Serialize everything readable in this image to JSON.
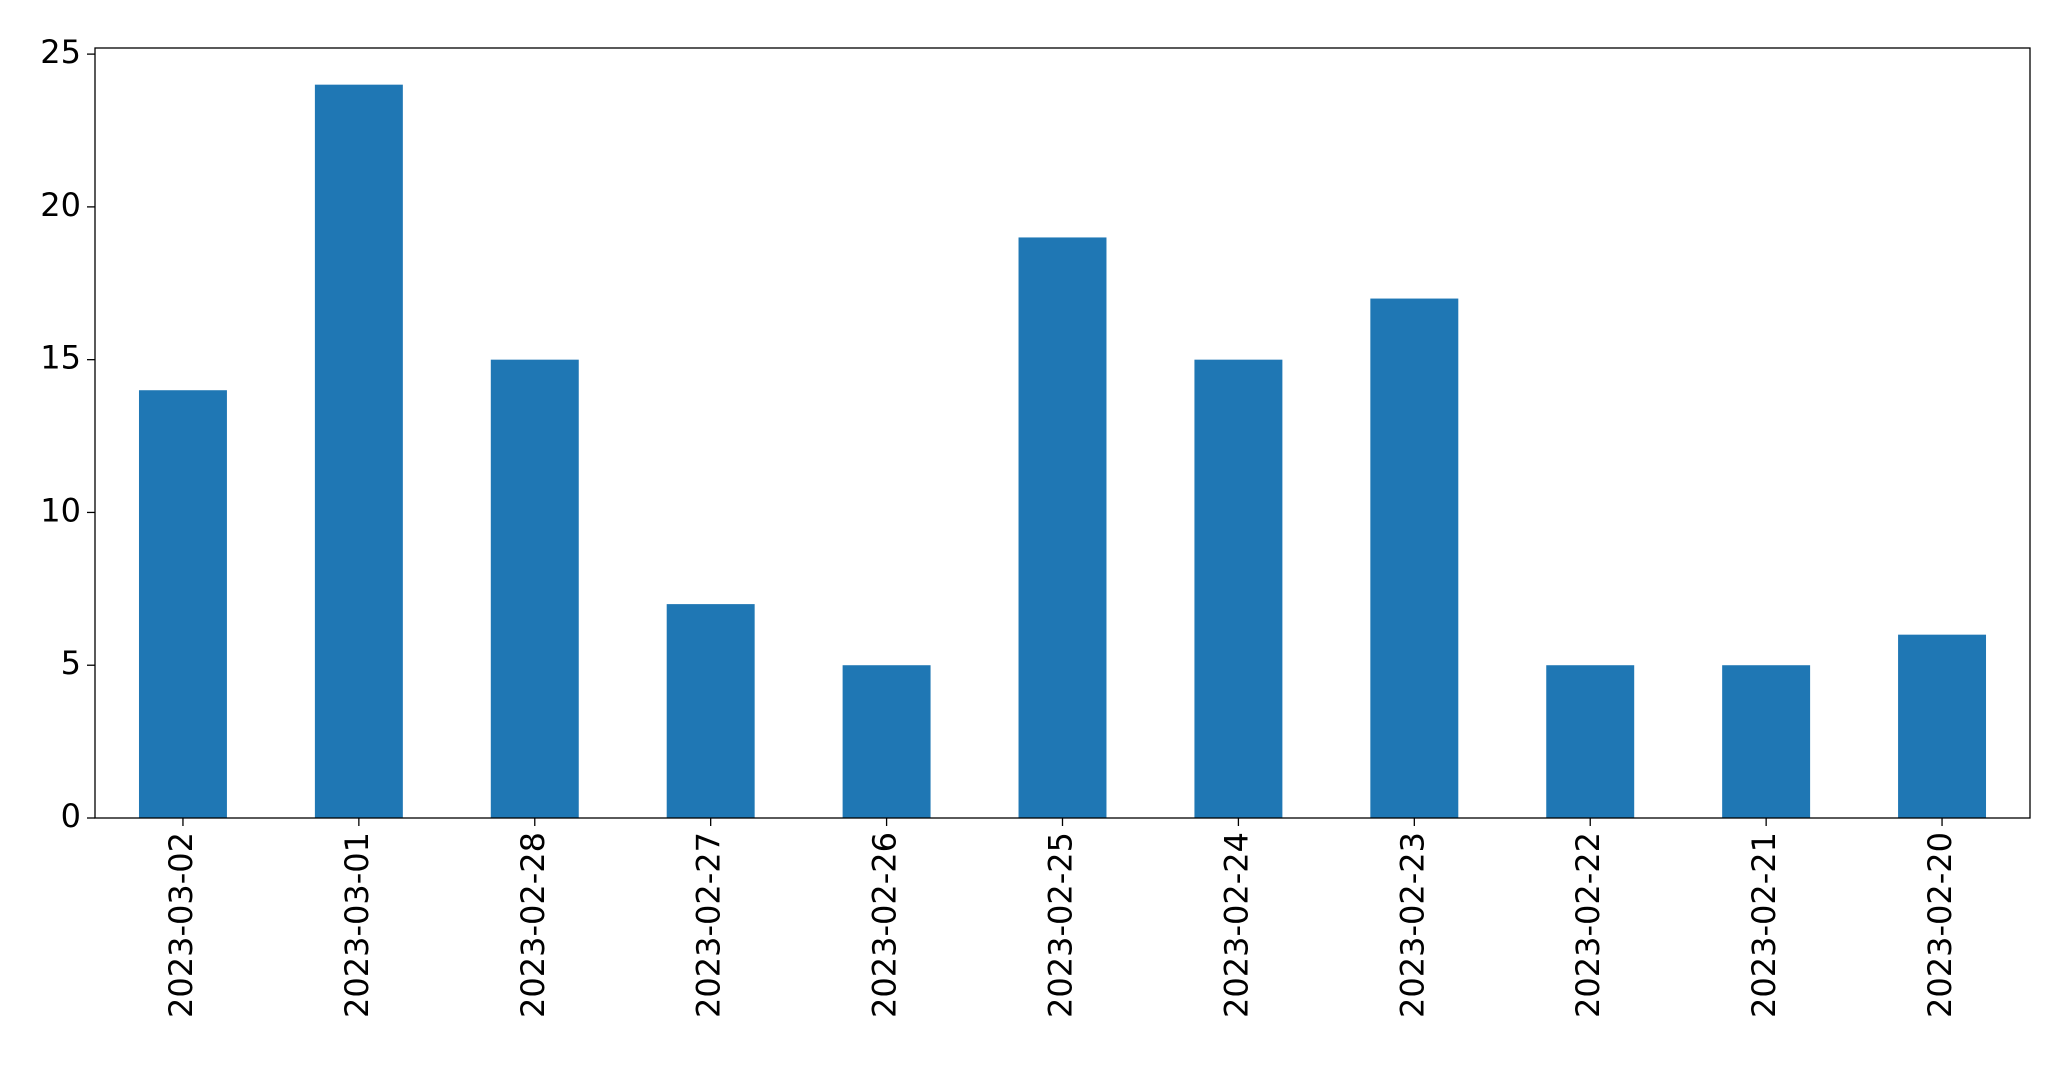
{
  "chart_data": {
    "type": "bar",
    "categories": [
      "2023-03-02",
      "2023-03-01",
      "2023-02-28",
      "2023-02-27",
      "2023-02-26",
      "2023-02-25",
      "2023-02-24",
      "2023-02-23",
      "2023-02-22",
      "2023-02-21",
      "2023-02-20"
    ],
    "values": [
      14,
      24,
      15,
      7,
      5,
      19,
      15,
      17,
      5,
      5,
      6
    ],
    "color": "#1f77b4",
    "ylim": [
      0,
      25.2
    ],
    "yticks": [
      0,
      5,
      10,
      15,
      20,
      25
    ],
    "grid": false
  }
}
